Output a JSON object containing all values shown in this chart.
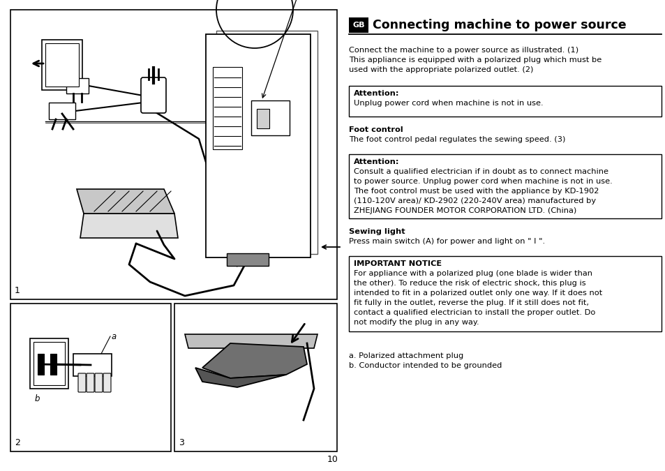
{
  "bg_color": "#ffffff",
  "page_number": "10",
  "title_gb": "GB",
  "title_main": "Connecting machine to power source",
  "intro_line1": "Connect the machine to a power source as illustrated. (1)",
  "intro_line2": "This appliance is equipped with a polarized plug which must be",
  "intro_line3": "used with the appropriate polarized outlet. (2)",
  "attn1_label": "Attention:",
  "attn1_body": "Unplug power cord when machine is not in use.",
  "foot_label": "Foot control",
  "foot_body": "The foot control pedal regulates the sewing speed. (3)",
  "attn2_label": "Attention:",
  "attn2_line1": "Consult a qualified electrician if in doubt as to connect machine",
  "attn2_line2": "to power source. Unplug power cord when machine is not in use.",
  "attn2_line3": "The foot control must be used with the appliance by KD-1902",
  "attn2_line4": "(110-120V area)/ KD-2902 (220-240V area) manufactured by",
  "attn2_line5": "ZHEJIANG FOUNDER MOTOR CORPORATION LTD. (China)",
  "sewing_label": "Sewing light",
  "sewing_body": "Press main switch (A) for power and light on \" I \".",
  "imp_label": "IMPORTANT NOTICE",
  "imp_line1": "For appliance with a polarized plug (one blade is wider than",
  "imp_line2": "the other). To reduce the risk of electric shock, this plug is",
  "imp_line3": "intended to fit in a polarized outlet only one way. If it does not",
  "imp_line4": "fit fully in the outlet, reverse the plug. If it still does not fit,",
  "imp_line5": "contact a qualified electrician to install the proper outlet. Do",
  "imp_line6": "not modify the plug in any way.",
  "fn_a": "a. Polarized attachment plug",
  "fn_b": "b. Conductor intended to be grounded"
}
